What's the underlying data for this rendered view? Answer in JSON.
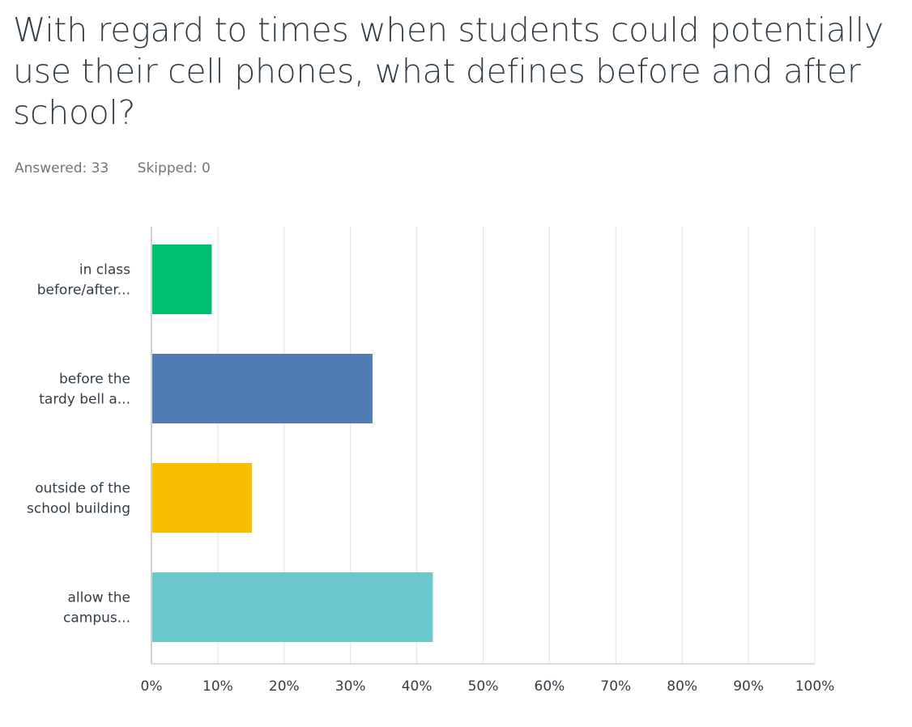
{
  "question": {
    "title": "With regard to times when students could potentially use their cell phones, what defines before and after school?"
  },
  "stats": {
    "answered_label": "Answered: 33",
    "skipped_label": "Skipped: 0"
  },
  "chart_data": {
    "type": "bar",
    "orientation": "horizontal",
    "title": "With regard to times when students could potentially use their cell phones, what defines before and after school?",
    "categories": [
      [
        "in class",
        "before/after..."
      ],
      [
        "before the",
        "tardy bell a..."
      ],
      [
        "outside of the",
        "school building"
      ],
      [
        "allow the",
        "campus..."
      ]
    ],
    "values": [
      9.09,
      33.33,
      15.15,
      42.42
    ],
    "unit": "%",
    "colors": [
      "#00bf6f",
      "#507cb6",
      "#f9be00",
      "#6bc8cd"
    ],
    "xlim": [
      0,
      100
    ],
    "xticks": [
      0,
      10,
      20,
      30,
      40,
      50,
      60,
      70,
      80,
      90,
      100
    ],
    "tick_suffix": "%",
    "grid": true,
    "xlabel": "",
    "ylabel": ""
  }
}
